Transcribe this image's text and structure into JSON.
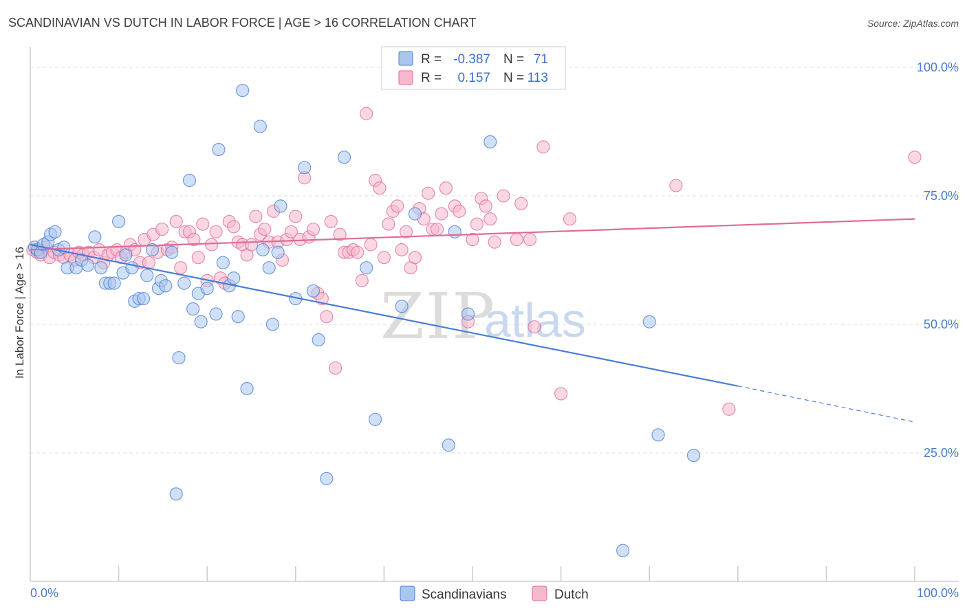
{
  "title": "SCANDINAVIAN VS DUTCH IN LABOR FORCE | AGE > 16 CORRELATION CHART",
  "source": "Source: ZipAtlas.com",
  "watermark": {
    "part1": "ZIP",
    "part2": "atlas"
  },
  "legend": {
    "r_label": "R =",
    "n_label": "N =",
    "rows": [
      {
        "r": "-0.387",
        "n": "71"
      },
      {
        "r": "0.157",
        "n": "113"
      }
    ]
  },
  "chart_data": {
    "type": "scatter",
    "title": "SCANDINAVIAN VS DUTCH IN LABOR FORCE | AGE > 16 CORRELATION CHART",
    "xlabel": "",
    "ylabel": "In Labor Force | Age > 16",
    "xlim": [
      0,
      100
    ],
    "ylim": [
      0,
      104
    ],
    "x_tick_labels": [
      "0.0%",
      "100.0%"
    ],
    "y_ticks": [
      25,
      50,
      75,
      100
    ],
    "y_tick_labels": [
      "25.0%",
      "50.0%",
      "75.0%",
      "100.0%"
    ],
    "grid": true,
    "legend_position": "bottom",
    "series": [
      {
        "name": "Scandinavians",
        "color": "#4a7cd6",
        "fill": "#a9c6ef",
        "r": -0.387,
        "n": 71,
        "trend": {
          "x0": 0,
          "y0": 65.5,
          "x1": 80,
          "y1": 38.0,
          "dash_to_x": 100,
          "dash_to_y": 31.0
        },
        "points": [
          [
            0.5,
            65
          ],
          [
            0.8,
            64.5
          ],
          [
            1.2,
            64
          ],
          [
            1.5,
            65.5
          ],
          [
            2.0,
            66
          ],
          [
            2.3,
            67.5
          ],
          [
            2.8,
            68
          ],
          [
            3.2,
            64.5
          ],
          [
            3.8,
            65
          ],
          [
            4.2,
            61
          ],
          [
            5.2,
            61
          ],
          [
            5.8,
            62.5
          ],
          [
            6.5,
            61.5
          ],
          [
            7.3,
            67
          ],
          [
            8.0,
            61
          ],
          [
            8.5,
            58
          ],
          [
            9.0,
            58
          ],
          [
            9.5,
            58
          ],
          [
            10.0,
            70
          ],
          [
            10.5,
            60
          ],
          [
            10.8,
            63.5
          ],
          [
            11.5,
            61
          ],
          [
            11.8,
            54.5
          ],
          [
            12.3,
            55
          ],
          [
            12.8,
            55
          ],
          [
            13.2,
            59.5
          ],
          [
            13.8,
            64.5
          ],
          [
            14.5,
            57
          ],
          [
            14.8,
            58.5
          ],
          [
            15.3,
            57.5
          ],
          [
            16.0,
            64
          ],
          [
            16.5,
            17
          ],
          [
            16.8,
            43.5
          ],
          [
            17.4,
            58
          ],
          [
            18.0,
            78
          ],
          [
            18.4,
            53
          ],
          [
            19.0,
            56
          ],
          [
            19.3,
            50.5
          ],
          [
            20.0,
            57
          ],
          [
            21.0,
            52
          ],
          [
            21.3,
            84
          ],
          [
            21.8,
            62
          ],
          [
            22.5,
            57.5
          ],
          [
            23.0,
            59
          ],
          [
            23.5,
            51.5
          ],
          [
            24.0,
            95.5
          ],
          [
            24.5,
            37.5
          ],
          [
            26.0,
            88.5
          ],
          [
            26.3,
            64.5
          ],
          [
            27.0,
            61
          ],
          [
            27.4,
            50
          ],
          [
            28.0,
            64
          ],
          [
            28.3,
            73
          ],
          [
            30.0,
            55
          ],
          [
            31.0,
            80.5
          ],
          [
            32.0,
            56.5
          ],
          [
            32.6,
            47
          ],
          [
            33.5,
            20
          ],
          [
            35.5,
            82.5
          ],
          [
            38.0,
            61
          ],
          [
            39.0,
            31.5
          ],
          [
            42.0,
            53.5
          ],
          [
            43.5,
            71.5
          ],
          [
            47.3,
            26.5
          ],
          [
            48.0,
            68
          ],
          [
            49.5,
            52
          ],
          [
            52.0,
            85.5
          ],
          [
            67.0,
            6
          ],
          [
            70.0,
            50.5
          ],
          [
            71.0,
            28.5
          ],
          [
            75.0,
            24.5
          ]
        ]
      },
      {
        "name": "Dutch",
        "color": "#e06a98",
        "fill": "#f5b8cc",
        "r": 0.157,
        "n": 113,
        "trend": {
          "x0": 0,
          "y0": 64.5,
          "x1": 100,
          "y1": 70.5
        },
        "points": [
          [
            0.3,
            64.5
          ],
          [
            0.8,
            64
          ],
          [
            1.2,
            63.5
          ],
          [
            1.8,
            65
          ],
          [
            2.2,
            63
          ],
          [
            2.7,
            64
          ],
          [
            3.3,
            63.5
          ],
          [
            3.8,
            63
          ],
          [
            4.5,
            63.5
          ],
          [
            5.0,
            62.5
          ],
          [
            5.5,
            64
          ],
          [
            6.0,
            63.5
          ],
          [
            6.6,
            64
          ],
          [
            7.2,
            63
          ],
          [
            7.8,
            64.5
          ],
          [
            8.3,
            62
          ],
          [
            8.8,
            63.5
          ],
          [
            9.3,
            64
          ],
          [
            9.8,
            64.5
          ],
          [
            10.3,
            63
          ],
          [
            10.8,
            64
          ],
          [
            11.3,
            65.5
          ],
          [
            11.8,
            64.5
          ],
          [
            12.4,
            62
          ],
          [
            12.9,
            66.5
          ],
          [
            13.4,
            62
          ],
          [
            13.9,
            67.5
          ],
          [
            14.4,
            64
          ],
          [
            14.9,
            68.5
          ],
          [
            15.5,
            64.5
          ],
          [
            16.0,
            65
          ],
          [
            16.5,
            70
          ],
          [
            17.0,
            61
          ],
          [
            17.5,
            68
          ],
          [
            18.0,
            68
          ],
          [
            18.5,
            66.5
          ],
          [
            19.0,
            63
          ],
          [
            19.5,
            69.5
          ],
          [
            20.0,
            58.5
          ],
          [
            20.5,
            65.5
          ],
          [
            21.0,
            68
          ],
          [
            21.5,
            59
          ],
          [
            22.0,
            58
          ],
          [
            22.5,
            70
          ],
          [
            23.0,
            69
          ],
          [
            23.5,
            66
          ],
          [
            24.0,
            65.5
          ],
          [
            24.5,
            63.5
          ],
          [
            25.0,
            65.5
          ],
          [
            25.5,
            71
          ],
          [
            26.0,
            67.5
          ],
          [
            26.5,
            68.5
          ],
          [
            27.0,
            66
          ],
          [
            27.5,
            72
          ],
          [
            28.0,
            66
          ],
          [
            28.5,
            62.5
          ],
          [
            29.0,
            66.5
          ],
          [
            29.5,
            68
          ],
          [
            30.0,
            71
          ],
          [
            30.5,
            66.5
          ],
          [
            31.0,
            78.5
          ],
          [
            31.5,
            67
          ],
          [
            32.0,
            68.5
          ],
          [
            32.5,
            56
          ],
          [
            33.0,
            55
          ],
          [
            33.5,
            51.5
          ],
          [
            34.0,
            70
          ],
          [
            34.5,
            41.5
          ],
          [
            35.0,
            67.5
          ],
          [
            35.5,
            64
          ],
          [
            36.0,
            64
          ],
          [
            36.5,
            64.5
          ],
          [
            37.0,
            64
          ],
          [
            37.5,
            58.5
          ],
          [
            38.0,
            91
          ],
          [
            38.5,
            65.5
          ],
          [
            39.0,
            78
          ],
          [
            39.5,
            76.5
          ],
          [
            40.0,
            63
          ],
          [
            40.5,
            69.5
          ],
          [
            41.0,
            72
          ],
          [
            41.5,
            73
          ],
          [
            42.0,
            64.5
          ],
          [
            42.5,
            68
          ],
          [
            43.0,
            61
          ],
          [
            43.5,
            63
          ],
          [
            44.0,
            72.5
          ],
          [
            44.5,
            70.5
          ],
          [
            45.0,
            75.5
          ],
          [
            45.5,
            68.5
          ],
          [
            46.0,
            68.5
          ],
          [
            46.5,
            71.5
          ],
          [
            47.0,
            76.5
          ],
          [
            48.0,
            73
          ],
          [
            48.5,
            72
          ],
          [
            49.5,
            50.5
          ],
          [
            50.0,
            66.5
          ],
          [
            50.5,
            69.5
          ],
          [
            51.0,
            74.5
          ],
          [
            51.5,
            73
          ],
          [
            52.0,
            70.5
          ],
          [
            52.5,
            66
          ],
          [
            53.5,
            75
          ],
          [
            55.0,
            66.5
          ],
          [
            55.5,
            73.5
          ],
          [
            57.0,
            49.5
          ],
          [
            58.0,
            84.5
          ],
          [
            60.0,
            36.5
          ],
          [
            61.0,
            70.5
          ],
          [
            73.0,
            77
          ],
          [
            79.0,
            33.5
          ],
          [
            100.0,
            82.5
          ],
          [
            56.5,
            66.5
          ]
        ]
      }
    ]
  }
}
